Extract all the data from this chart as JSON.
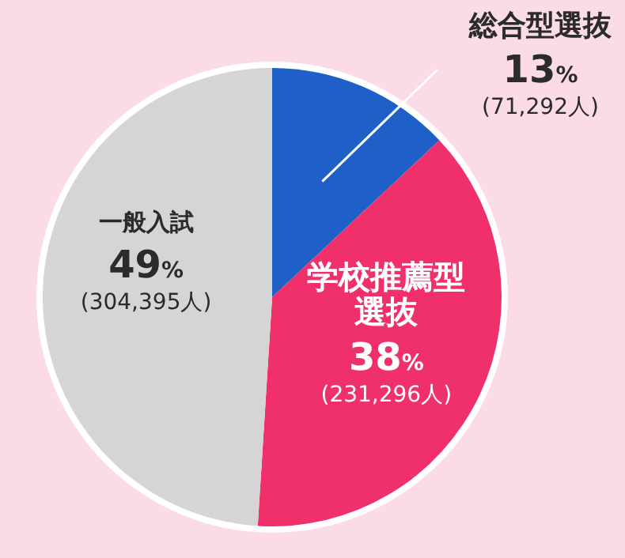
{
  "chart_data": {
    "type": "pie",
    "categories": [
      "総合型選抜",
      "学校推薦型選抜",
      "一般入試"
    ],
    "values": [
      13,
      38,
      49
    ],
    "colors": [
      "#1f5fc8",
      "#f0306a",
      "#d5d5d5"
    ],
    "value_labels": [
      "13%",
      "38%",
      "49%"
    ],
    "annotations": [
      {
        "text": "(71,292人)",
        "x": "総合型選抜"
      },
      {
        "text": "(231,296人)",
        "x": "学校推薦型選抜"
      },
      {
        "text": "(304,395人)",
        "x": "一般入試"
      }
    ]
  }
}
